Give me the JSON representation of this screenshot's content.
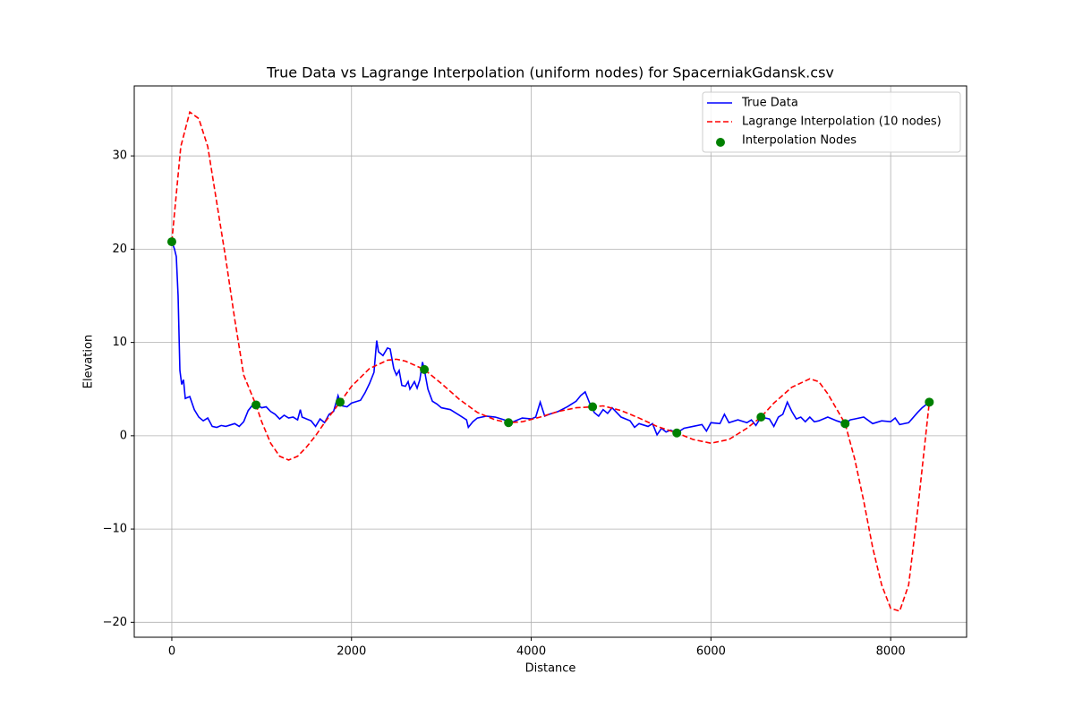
{
  "chart_data": {
    "type": "line",
    "title": "True Data vs Lagrange Interpolation (uniform nodes) for SpacerniakGdansk.csv",
    "x_label": "Distance",
    "y_label": "Elevation",
    "xlim": [
      -418,
      8845
    ],
    "ylim": [
      -21.6,
      37.5
    ],
    "xticks": [
      0,
      2000,
      4000,
      6000,
      8000
    ],
    "yticks": [
      {
        "value": -20,
        "label": "−20"
      },
      {
        "value": -10,
        "label": "−10"
      },
      0,
      10,
      20,
      30
    ],
    "grid": true,
    "legend": "upper right",
    "series": [
      {
        "name": "True Data",
        "kind": "line",
        "style": "solid",
        "color": "#0000ff",
        "x": [
          0,
          30,
          50,
          70,
          90,
          110,
          130,
          150,
          200,
          250,
          300,
          350,
          400,
          450,
          500,
          550,
          600,
          700,
          750,
          800,
          850,
          900,
          950,
          1000,
          1050,
          1100,
          1150,
          1200,
          1250,
          1300,
          1350,
          1400,
          1430,
          1450,
          1500,
          1550,
          1600,
          1650,
          1700,
          1750,
          1800,
          1850,
          1873,
          1900,
          1950,
          2000,
          2100,
          2150,
          2200,
          2250,
          2280,
          2300,
          2350,
          2400,
          2430,
          2470,
          2500,
          2530,
          2560,
          2600,
          2630,
          2650,
          2700,
          2730,
          2760,
          2790,
          2810,
          2850,
          2900,
          2950,
          3000,
          3100,
          3200,
          3280,
          3300,
          3350,
          3400,
          3500,
          3600,
          3700,
          3747,
          3800,
          3900,
          4000,
          4050,
          4100,
          4150,
          4200,
          4300,
          4400,
          4500,
          4550,
          4600,
          4650,
          4683,
          4700,
          4750,
          4800,
          4850,
          4900,
          4950,
          5000,
          5100,
          5150,
          5200,
          5300,
          5350,
          5400,
          5450,
          5500,
          5550,
          5620,
          5700,
          5800,
          5900,
          5950,
          6000,
          6100,
          6150,
          6200,
          6300,
          6400,
          6450,
          6500,
          6557,
          6650,
          6700,
          6750,
          6800,
          6850,
          6900,
          6950,
          7000,
          7050,
          7100,
          7150,
          7200,
          7300,
          7400,
          7493,
          7550,
          7600,
          7700,
          7800,
          7900,
          8000,
          8050,
          8100,
          8200,
          8300,
          8350,
          8430
        ],
        "values": [
          20.8,
          20,
          19.2,
          15,
          7,
          5.5,
          6,
          4,
          4.2,
          2.8,
          2,
          1.6,
          1.9,
          1.0,
          0.9,
          1.1,
          1.0,
          1.3,
          1.0,
          1.5,
          2.7,
          3.3,
          3.3,
          3.0,
          3.1,
          2.6,
          2.3,
          1.8,
          2.2,
          1.9,
          2.0,
          1.7,
          2.8,
          2.0,
          1.8,
          1.6,
          1.0,
          1.8,
          1.4,
          2.3,
          2.6,
          4.3,
          3.6,
          3.2,
          3.1,
          3.5,
          3.8,
          4.6,
          5.6,
          6.8,
          10.2,
          9.0,
          8.6,
          9.4,
          9.3,
          7.2,
          6.5,
          7.0,
          5.4,
          5.3,
          5.8,
          5.0,
          5.8,
          5.1,
          6.0,
          7.9,
          7.1,
          5.0,
          3.7,
          3.4,
          3.0,
          2.8,
          2.2,
          1.7,
          0.9,
          1.5,
          1.9,
          2.1,
          2.0,
          1.7,
          1.4,
          1.5,
          1.9,
          1.8,
          2.0,
          3.6,
          2.1,
          2.3,
          2.6,
          3.1,
          3.7,
          4.3,
          4.7,
          3.5,
          3.1,
          2.5,
          2.1,
          2.8,
          2.4,
          3.0,
          2.5,
          2.0,
          1.6,
          0.9,
          1.3,
          1.0,
          1.3,
          0.1,
          0.8,
          0.4,
          0.6,
          0.3,
          0.8,
          1.0,
          1.2,
          0.5,
          1.4,
          1.3,
          2.3,
          1.4,
          1.7,
          1.4,
          1.7,
          1.1,
          2.0,
          1.8,
          1.0,
          2.0,
          2.3,
          3.6,
          2.6,
          1.8,
          2.0,
          1.5,
          2.0,
          1.5,
          1.6,
          2.0,
          1.6,
          1.3,
          1.7,
          1.8,
          2.0,
          1.3,
          1.6,
          1.5,
          1.9,
          1.2,
          1.4,
          2.5,
          3.0,
          3.6
        ]
      },
      {
        "name": "Lagrange Interpolation (10 nodes)",
        "kind": "line",
        "style": "dashed",
        "color": "#ff0000",
        "x": [
          0,
          100,
          200,
          300,
          400,
          500,
          600,
          700,
          800,
          937,
          1000,
          1100,
          1200,
          1300,
          1400,
          1500,
          1600,
          1700,
          1873,
          2000,
          2200,
          2400,
          2500,
          2600,
          2810,
          3000,
          3200,
          3400,
          3600,
          3747,
          3900,
          4100,
          4300,
          4500,
          4683,
          4800,
          5000,
          5200,
          5400,
          5620,
          5800,
          6000,
          6200,
          6400,
          6557,
          6700,
          6900,
          7100,
          7200,
          7300,
          7493,
          7600,
          7700,
          7800,
          7900,
          8000,
          8100,
          8200,
          8300,
          8430
        ],
        "values": [
          20.8,
          31,
          34.7,
          34,
          31,
          25,
          19,
          12.5,
          6.5,
          3.3,
          1.5,
          -0.8,
          -2.2,
          -2.6,
          -2.2,
          -1.2,
          0,
          1.4,
          3.6,
          5.3,
          7.2,
          8.1,
          8.2,
          8.0,
          7.1,
          5.6,
          3.9,
          2.5,
          1.7,
          1.4,
          1.5,
          2.0,
          2.6,
          3.0,
          3.1,
          3.2,
          2.7,
          1.9,
          1.0,
          0.3,
          -0.4,
          -0.8,
          -0.4,
          0.8,
          2.0,
          3.5,
          5.2,
          6.1,
          5.8,
          4.5,
          1.3,
          -2.5,
          -7,
          -12,
          -16,
          -18.5,
          -18.8,
          -16,
          -8,
          3.6
        ]
      },
      {
        "name": "Interpolation Nodes",
        "kind": "scatter",
        "color": "#008000",
        "x": [
          0,
          937,
          1873,
          2810,
          3747,
          4683,
          5620,
          6557,
          7493,
          8430
        ],
        "values": [
          20.8,
          3.3,
          3.6,
          7.1,
          1.4,
          3.1,
          0.3,
          2.0,
          1.3,
          3.6
        ]
      }
    ]
  }
}
